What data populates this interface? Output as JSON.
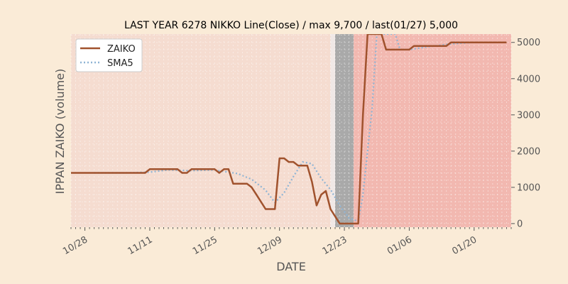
{
  "chart_data": {
    "type": "line",
    "title": "LAST YEAR 6278 NIKKO Line(Close) / max 9,700 / last(01/27) 5,000",
    "xlabel": "DATE",
    "ylabel": "IPPAN ZAIKO (volume)",
    "x_ticks": [
      "10/28",
      "11/11",
      "11/25",
      "12/09",
      "12/23",
      "01/06",
      "01/20"
    ],
    "y_ticks": [
      0,
      1000,
      2000,
      3000,
      4000,
      5000
    ],
    "ylim": [
      -100,
      5230
    ],
    "grid": true,
    "legend_position": "top-left",
    "y_axis_side": "right",
    "shaded_regions": [
      {
        "from": "10/25",
        "to": "12/20",
        "color": "#f5dcd0"
      },
      {
        "from": "12/20",
        "to": "12/21",
        "color": "#f0e8e6"
      },
      {
        "from": "12/21",
        "to": "12/25",
        "color": "#a9a9a9"
      },
      {
        "from": "12/25",
        "to": "01/28",
        "color": "#f2b8b0"
      }
    ],
    "series": [
      {
        "name": "ZAIKO",
        "color": "#a0522d",
        "style": "solid",
        "points": [
          [
            "10/25",
            1400
          ],
          [
            "10/26",
            1400
          ],
          [
            "10/28",
            1400
          ],
          [
            "10/30",
            1400
          ],
          [
            "11/01",
            1400
          ],
          [
            "11/04",
            1400
          ],
          [
            "11/06",
            1400
          ],
          [
            "11/08",
            1400
          ],
          [
            "11/10",
            1400
          ],
          [
            "11/11",
            1500
          ],
          [
            "11/13",
            1500
          ],
          [
            "11/15",
            1500
          ],
          [
            "11/17",
            1500
          ],
          [
            "11/18",
            1400
          ],
          [
            "11/19",
            1400
          ],
          [
            "11/20",
            1500
          ],
          [
            "11/22",
            1500
          ],
          [
            "11/25",
            1500
          ],
          [
            "11/26",
            1400
          ],
          [
            "11/27",
            1500
          ],
          [
            "11/28",
            1500
          ],
          [
            "11/29",
            1100
          ],
          [
            "11/30",
            1100
          ],
          [
            "12/02",
            1100
          ],
          [
            "12/03",
            1000
          ],
          [
            "12/04",
            800
          ],
          [
            "12/06",
            400
          ],
          [
            "12/08",
            400
          ],
          [
            "12/09",
            1800
          ],
          [
            "12/10",
            1800
          ],
          [
            "12/11",
            1700
          ],
          [
            "12/12",
            1700
          ],
          [
            "12/13",
            1600
          ],
          [
            "12/15",
            1600
          ],
          [
            "12/16",
            1150
          ],
          [
            "12/17",
            500
          ],
          [
            "12/18",
            800
          ],
          [
            "12/19",
            900
          ],
          [
            "12/20",
            400
          ],
          [
            "12/22",
            0
          ],
          [
            "12/23",
            0
          ],
          [
            "12/24",
            0
          ],
          [
            "12/26",
            0
          ],
          [
            "12/27",
            3000
          ],
          [
            "12/28",
            5230
          ],
          [
            "12/31",
            5230
          ],
          [
            "01/01",
            4800
          ],
          [
            "01/02",
            4800
          ],
          [
            "01/04",
            4800
          ],
          [
            "01/05",
            4800
          ],
          [
            "01/06",
            4800
          ],
          [
            "01/07",
            4900
          ],
          [
            "01/10",
            4900
          ],
          [
            "01/14",
            4900
          ],
          [
            "01/15",
            5000
          ],
          [
            "01/20",
            5000
          ],
          [
            "01/27",
            5000
          ]
        ]
      },
      {
        "name": "SMA5",
        "color": "#8fb4d4",
        "style": "dotted",
        "points": [
          [
            "10/30",
            1400
          ],
          [
            "11/06",
            1400
          ],
          [
            "11/11",
            1420
          ],
          [
            "11/15",
            1480
          ],
          [
            "11/20",
            1460
          ],
          [
            "11/25",
            1480
          ],
          [
            "11/30",
            1380
          ],
          [
            "12/03",
            1220
          ],
          [
            "12/06",
            920
          ],
          [
            "12/08",
            580
          ],
          [
            "12/10",
            850
          ],
          [
            "12/12",
            1300
          ],
          [
            "12/14",
            1700
          ],
          [
            "12/16",
            1650
          ],
          [
            "12/18",
            1250
          ],
          [
            "12/20",
            940
          ],
          [
            "12/22",
            500
          ],
          [
            "12/24",
            150
          ],
          [
            "12/26",
            60
          ],
          [
            "12/27",
            800
          ],
          [
            "12/29",
            3200
          ],
          [
            "12/30",
            5230
          ],
          [
            "01/03",
            5230
          ],
          [
            "01/04",
            4800
          ],
          [
            "01/06",
            4800
          ],
          [
            "01/10",
            4880
          ],
          [
            "01/15",
            4960
          ],
          [
            "01/20",
            5000
          ],
          [
            "01/27",
            5000
          ]
        ]
      }
    ]
  }
}
